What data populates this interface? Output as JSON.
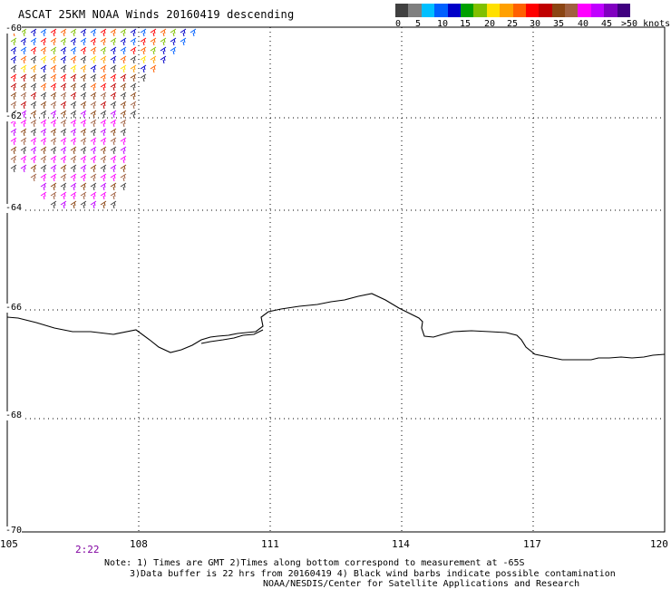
{
  "header": {
    "title": "ASCAT 25KM NOAA Winds 20160419 descending"
  },
  "legend": {
    "colors": [
      "#404040",
      "#7f7f7f",
      "#00bfff",
      "#0060ff",
      "#0000c8",
      "#00a000",
      "#80c000",
      "#ffe000",
      "#ffa000",
      "#ff6000",
      "#ff0000",
      "#c00000",
      "#8b4513",
      "#a06040",
      "#ff00ff",
      "#c000ff",
      "#8000c0",
      "#400080"
    ],
    "labels": [
      "0",
      "5",
      "10",
      "15",
      "20",
      "25",
      "30",
      "35",
      "40",
      "45",
      ">50 knots"
    ]
  },
  "axes": {
    "x_labels": [
      "105",
      "108",
      "111",
      "114",
      "117",
      "120"
    ],
    "y_labels": [
      "-60",
      "-62",
      "-64",
      "-66",
      "-68",
      "-70"
    ],
    "x_range": [
      105,
      120
    ],
    "y_range": [
      -60,
      -70
    ]
  },
  "time_label": "2:22",
  "notes": {
    "line1": "Note: 1) Times are GMT 2)Times along bottom correspond to measurement at -65S",
    "line2": "3)Data buffer is 22 hrs from 20160419 4) Black wind barbs indicate possible contamination",
    "line3": "NOAA/NESDIS/Center for Satellite Applications and Research"
  }
}
